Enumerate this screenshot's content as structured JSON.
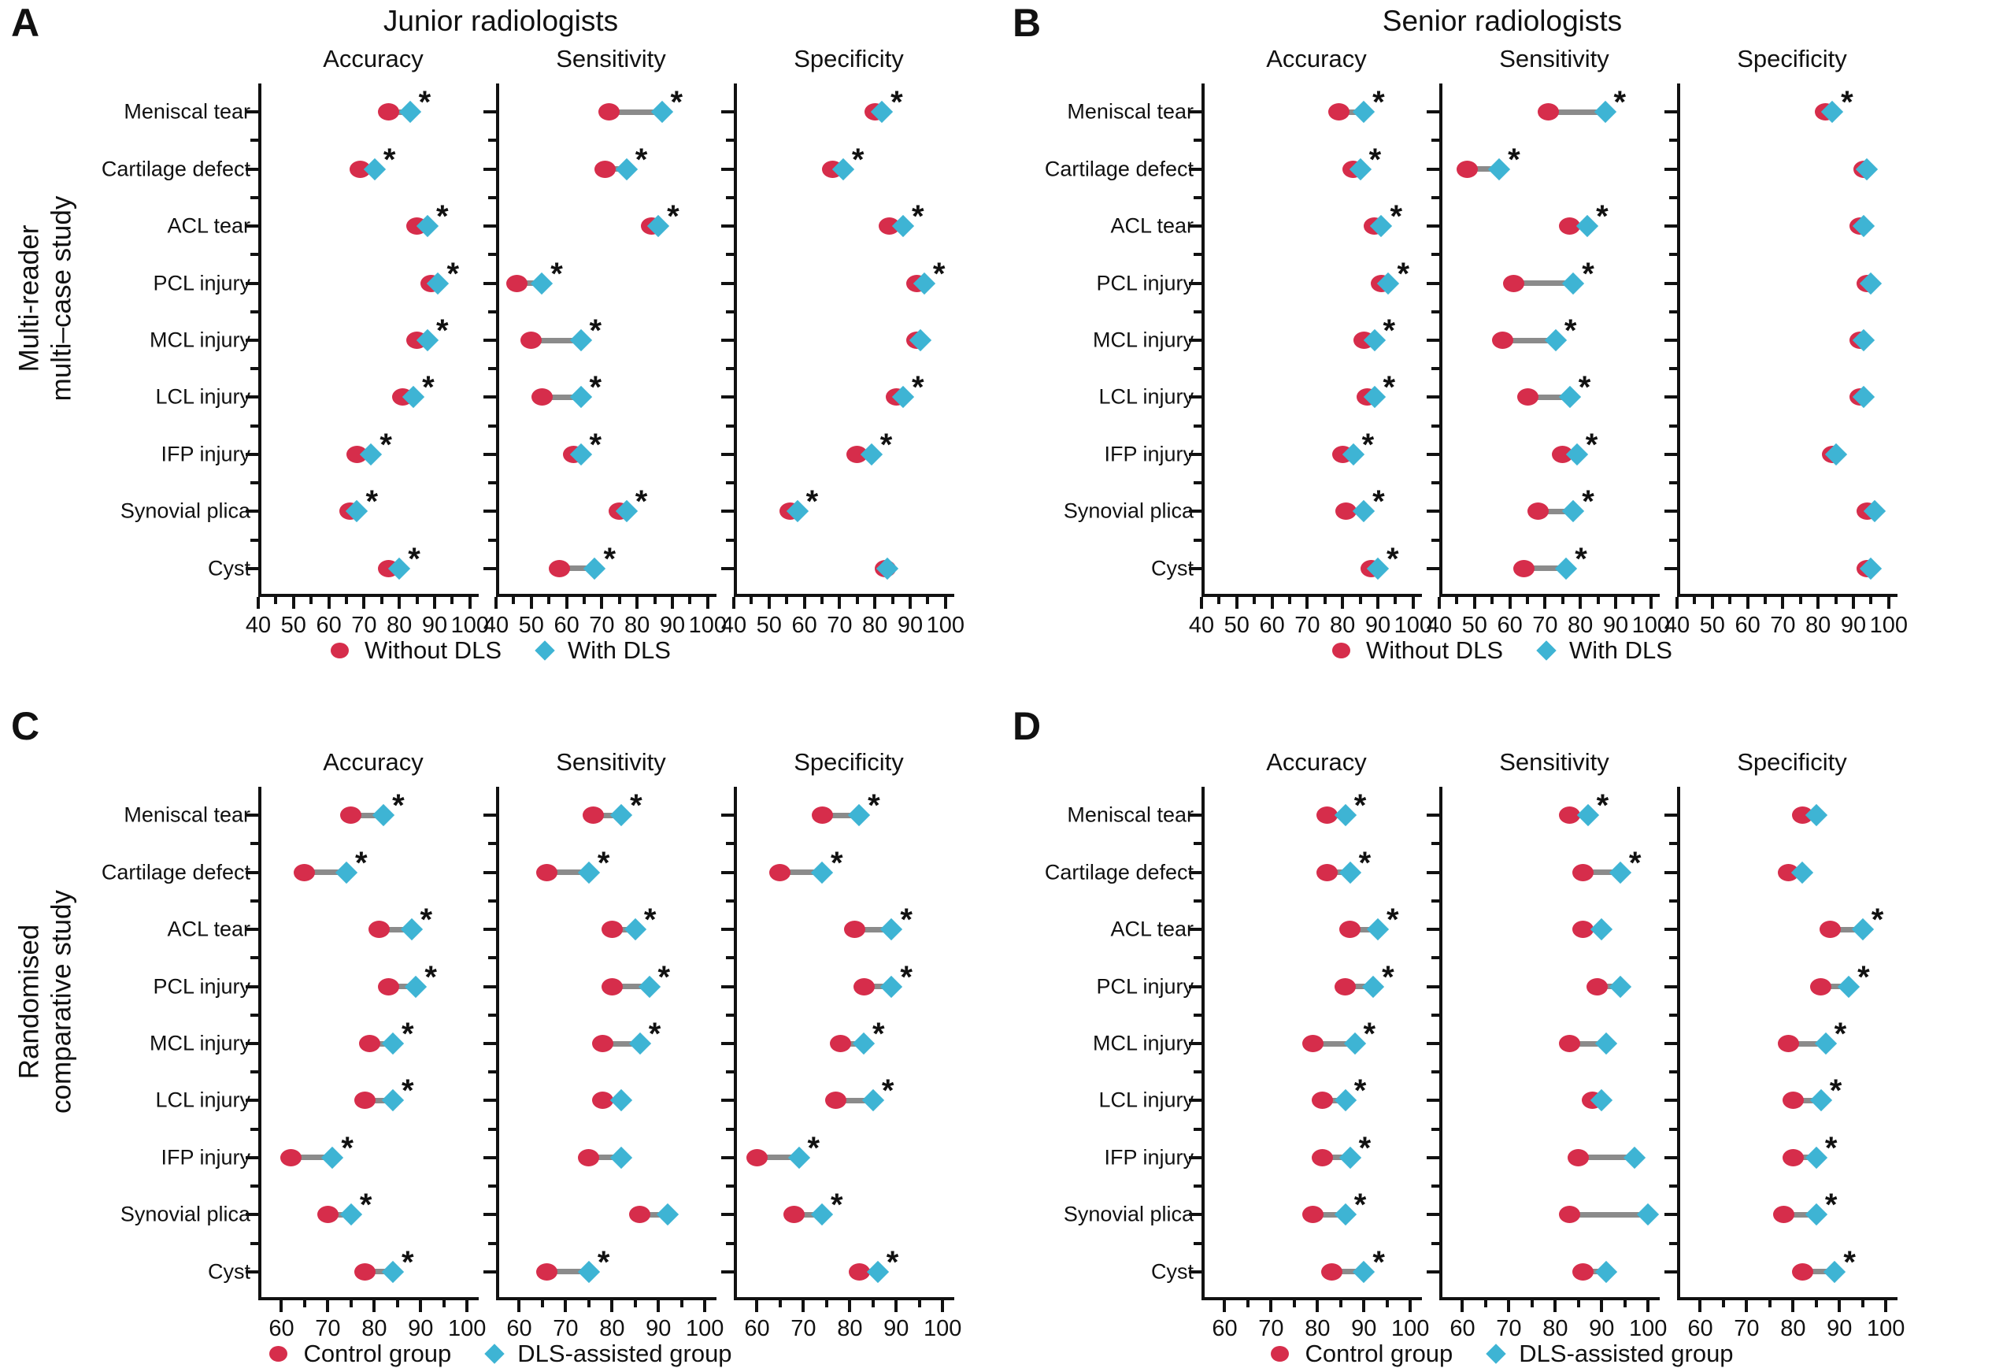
{
  "styles": {
    "red": "#d62d4b",
    "cyan": "#3eb4d4",
    "connector": "#8b8b8b",
    "axis": "#111111"
  },
  "chart_data": [
    {
      "panel": "A",
      "panel_title": "Junior radiologists",
      "row_label_lines": [
        "Multi-reader",
        "multi–case study"
      ],
      "type": "dumbbell",
      "categories": [
        "Meniscal tear",
        "Cartilage defect",
        "ACL tear",
        "PCL injury",
        "MCL injury",
        "LCL injury",
        "IFP injury",
        "Synovial plica",
        "Cyst"
      ],
      "x": {
        "ticks": [
          40,
          50,
          60,
          70,
          80,
          90,
          100
        ],
        "min": 40,
        "max": 102.5
      },
      "legend": [
        {
          "label": "Without DLS",
          "marker": "circle",
          "color": "#d62d4b"
        },
        {
          "label": "With DLS",
          "marker": "diamond",
          "color": "#3eb4d4"
        }
      ],
      "subplots": [
        {
          "title": "Accuracy",
          "series": [
            {
              "name": "Without DLS",
              "values": [
                77,
                69,
                85,
                89,
                85,
                81,
                68,
                66,
                77
              ]
            },
            {
              "name": "With DLS",
              "values": [
                83,
                73,
                88,
                91,
                88,
                84,
                72,
                68,
                80
              ]
            }
          ],
          "significant": [
            true,
            true,
            true,
            true,
            true,
            true,
            true,
            true,
            true
          ]
        },
        {
          "title": "Sensitivity",
          "series": [
            {
              "name": "Without DLS",
              "values": [
                72,
                71,
                84,
                46,
                50,
                53,
                62,
                75,
                58
              ]
            },
            {
              "name": "With DLS",
              "values": [
                87,
                77,
                86,
                53,
                64,
                64,
                64,
                77,
                68
              ]
            }
          ],
          "significant": [
            true,
            true,
            true,
            true,
            true,
            true,
            true,
            true,
            true
          ]
        },
        {
          "title": "Specificity",
          "series": [
            {
              "name": "Without DLS",
              "values": [
                80,
                68,
                84,
                92,
                92,
                86,
                75,
                56,
                83
              ]
            },
            {
              "name": "With DLS",
              "values": [
                82,
                71,
                88,
                94,
                93,
                88,
                79,
                58,
                83.6
              ]
            }
          ],
          "significant": [
            true,
            true,
            true,
            true,
            false,
            true,
            true,
            true,
            false
          ]
        }
      ]
    },
    {
      "panel": "B",
      "panel_title": "Senior radiologists",
      "row_label_lines": [],
      "type": "dumbbell",
      "categories": [
        "Meniscal tear",
        "Cartilage defect",
        "ACL tear",
        "PCL injury",
        "MCL injury",
        "LCL injury",
        "IFP injury",
        "Synovial plica",
        "Cyst"
      ],
      "x": {
        "ticks": [
          40,
          50,
          60,
          70,
          80,
          90,
          100
        ],
        "min": 40,
        "max": 102.5
      },
      "legend": [
        {
          "label": "Without DLS",
          "marker": "circle",
          "color": "#d62d4b"
        },
        {
          "label": "With DLS",
          "marker": "diamond",
          "color": "#3eb4d4"
        }
      ],
      "subplots": [
        {
          "title": "Accuracy",
          "series": [
            {
              "name": "Without DLS",
              "values": [
                79,
                83,
                89,
                91,
                86,
                87,
                80,
                81,
                88
              ]
            },
            {
              "name": "With DLS",
              "values": [
                86,
                85,
                91,
                93,
                89,
                89,
                83,
                86,
                90
              ]
            }
          ],
          "significant": [
            true,
            true,
            true,
            true,
            true,
            true,
            true,
            true,
            true
          ]
        },
        {
          "title": "Sensitivity",
          "series": [
            {
              "name": "Without DLS",
              "values": [
                71,
                48,
                77,
                61,
                58,
                65,
                75,
                68,
                64
              ]
            },
            {
              "name": "With DLS",
              "values": [
                87,
                57,
                82,
                78,
                73,
                77,
                79,
                78,
                76
              ]
            }
          ],
          "significant": [
            true,
            true,
            true,
            true,
            true,
            true,
            true,
            true,
            true
          ]
        },
        {
          "title": "Specificity",
          "series": [
            {
              "name": "Without DLS",
              "values": [
                82,
                93,
                92,
                94,
                92,
                92,
                84,
                94,
                94
              ]
            },
            {
              "name": "With DLS",
              "values": [
                84,
                93.7,
                93,
                95,
                93,
                93,
                85,
                96,
                95
              ]
            }
          ],
          "significant": [
            true,
            false,
            false,
            false,
            false,
            false,
            false,
            false,
            false
          ]
        }
      ]
    },
    {
      "panel": "C",
      "panel_title": "",
      "row_label_lines": [
        "Randomised",
        "comparative study"
      ],
      "type": "dumbbell",
      "categories": [
        "Meniscal tear",
        "Cartilage defect",
        "ACL tear",
        "PCL injury",
        "MCL injury",
        "LCL injury",
        "IFP injury",
        "Synovial plica",
        "Cyst"
      ],
      "x": {
        "ticks": [
          60,
          70,
          80,
          90,
          100
        ],
        "min": 55,
        "max": 102.5
      },
      "legend": [
        {
          "label": "Control group",
          "marker": "circle",
          "color": "#d62d4b"
        },
        {
          "label": "DLS-assisted group",
          "marker": "diamond",
          "color": "#3eb4d4"
        }
      ],
      "subplots": [
        {
          "title": "Accuracy",
          "series": [
            {
              "name": "Control group",
              "values": [
                75,
                65,
                81,
                83,
                79,
                78,
                62,
                70,
                78
              ]
            },
            {
              "name": "DLS-assisted group",
              "values": [
                82,
                74,
                88,
                89,
                84,
                84,
                71,
                75,
                84
              ]
            }
          ],
          "significant": [
            true,
            true,
            true,
            true,
            true,
            true,
            true,
            true,
            true
          ]
        },
        {
          "title": "Sensitivity",
          "series": [
            {
              "name": "Control group",
              "values": [
                76,
                66,
                80,
                80,
                78,
                78,
                75,
                86,
                66
              ]
            },
            {
              "name": "DLS-assisted group",
              "values": [
                82,
                75,
                85,
                88,
                86,
                82,
                82,
                92,
                75
              ]
            }
          ],
          "significant": [
            true,
            true,
            true,
            true,
            true,
            false,
            false,
            false,
            true
          ]
        },
        {
          "title": "Specificity",
          "series": [
            {
              "name": "Control group",
              "values": [
                74,
                65,
                81,
                83,
                78,
                77,
                60,
                68,
                82
              ]
            },
            {
              "name": "DLS-assisted group",
              "values": [
                82,
                74,
                89,
                89,
                83,
                85,
                69,
                74,
                86
              ]
            }
          ],
          "significant": [
            true,
            true,
            true,
            true,
            true,
            true,
            true,
            true,
            true
          ]
        }
      ]
    },
    {
      "panel": "D",
      "panel_title": "",
      "row_label_lines": [],
      "type": "dumbbell",
      "categories": [
        "Meniscal tear",
        "Cartilage defect",
        "ACL tear",
        "PCL injury",
        "MCL injury",
        "LCL injury",
        "IFP injury",
        "Synovial plica",
        "Cyst"
      ],
      "x": {
        "ticks": [
          60,
          70,
          80,
          90,
          100
        ],
        "min": 55,
        "max": 102.5
      },
      "legend": [
        {
          "label": "Control group",
          "marker": "circle",
          "color": "#d62d4b"
        },
        {
          "label": "DLS-assisted group",
          "marker": "diamond",
          "color": "#3eb4d4"
        }
      ],
      "subplots": [
        {
          "title": "Accuracy",
          "series": [
            {
              "name": "Control group",
              "values": [
                82,
                82,
                87,
                86,
                79,
                81,
                81,
                79,
                83
              ]
            },
            {
              "name": "DLS-assisted group",
              "values": [
                86,
                87,
                93,
                92,
                88,
                86,
                87,
                86,
                90
              ]
            }
          ],
          "significant": [
            true,
            true,
            true,
            true,
            true,
            true,
            true,
            true,
            true
          ]
        },
        {
          "title": "Sensitivity",
          "series": [
            {
              "name": "Control group",
              "values": [
                83,
                86,
                86,
                89,
                83,
                88,
                85,
                83,
                86
              ]
            },
            {
              "name": "DLS-assisted group",
              "values": [
                87,
                94,
                90,
                94,
                91,
                90,
                97,
                100,
                91
              ]
            }
          ],
          "significant": [
            true,
            true,
            false,
            false,
            false,
            false,
            false,
            false,
            false
          ]
        },
        {
          "title": "Specificity",
          "series": [
            {
              "name": "Control group",
              "values": [
                82,
                79,
                88,
                86,
                79,
                80,
                80,
                78,
                82
              ]
            },
            {
              "name": "DLS-assisted group",
              "values": [
                85,
                82,
                95,
                92,
                87,
                86,
                85,
                85,
                89
              ]
            }
          ],
          "significant": [
            false,
            false,
            true,
            true,
            true,
            true,
            true,
            true,
            true
          ]
        }
      ]
    }
  ]
}
